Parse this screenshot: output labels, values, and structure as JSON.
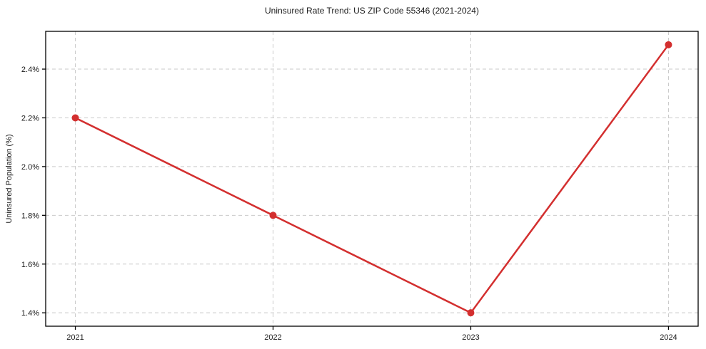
{
  "page": {
    "background": "#ffffff"
  },
  "chart_data": {
    "type": "line",
    "title": "Uninsured Rate Trend: US ZIP Code 55346 (2021-2024)",
    "xlabel": "",
    "ylabel": "Uninsured Population (%)",
    "x": [
      2021,
      2022,
      2023,
      2024
    ],
    "series": [
      {
        "name": "Uninsured rate",
        "values": [
          2.2,
          1.8,
          1.4,
          2.5
        ],
        "color": "#d32f2f",
        "line_width": 2.5,
        "marker": "circle",
        "marker_radius": 5
      }
    ],
    "x_ticks": [
      2021,
      2022,
      2023,
      2024
    ],
    "x_tick_labels": [
      "2021",
      "2022",
      "2023",
      "2024"
    ],
    "y_ticks": [
      1.4,
      1.6,
      1.8,
      2.0,
      2.2,
      2.4
    ],
    "y_tick_labels": [
      "1.4%",
      "1.6%",
      "1.8%",
      "2.0%",
      "2.2%",
      "2.4%"
    ],
    "xlim": [
      2020.85,
      2024.15
    ],
    "ylim": [
      1.345,
      2.555
    ],
    "grid": true,
    "grid_style": "dashed",
    "grid_color": "#c9c9c9",
    "axis_color": "#000000",
    "legend_position": "none"
  }
}
